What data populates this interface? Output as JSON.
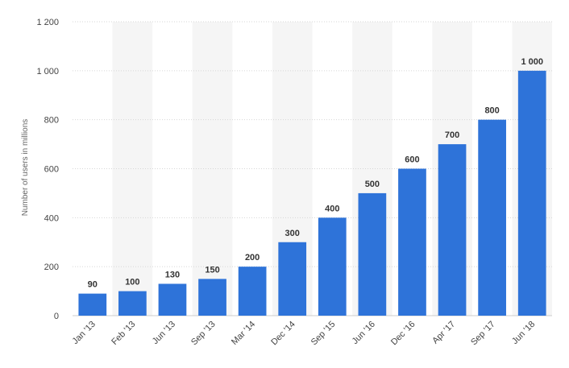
{
  "chart_data": {
    "type": "bar",
    "title": "",
    "xlabel": "",
    "ylabel": "Number of users in millions",
    "ylim": [
      0,
      1200
    ],
    "yticks": [
      0,
      200,
      400,
      600,
      800,
      1000,
      1200
    ],
    "ytick_labels": [
      "0",
      "200",
      "400",
      "600",
      "800",
      "1 000",
      "1 200"
    ],
    "grid": true,
    "legend": "none",
    "bar_color": "#2e73d9",
    "categories": [
      "Jan '13",
      "Feb '13",
      "Jun '13",
      "Sep '13",
      "Mar '14",
      "Dec '14",
      "Sep '15",
      "Jun '16",
      "Dec '16",
      "Apr '17",
      "Sep '17",
      "Jun '18"
    ],
    "values": [
      90,
      100,
      130,
      150,
      200,
      300,
      400,
      500,
      600,
      700,
      800,
      1000
    ],
    "value_labels": [
      "90",
      "100",
      "130",
      "150",
      "200",
      "300",
      "400",
      "500",
      "600",
      "700",
      "800",
      "1 000"
    ]
  }
}
